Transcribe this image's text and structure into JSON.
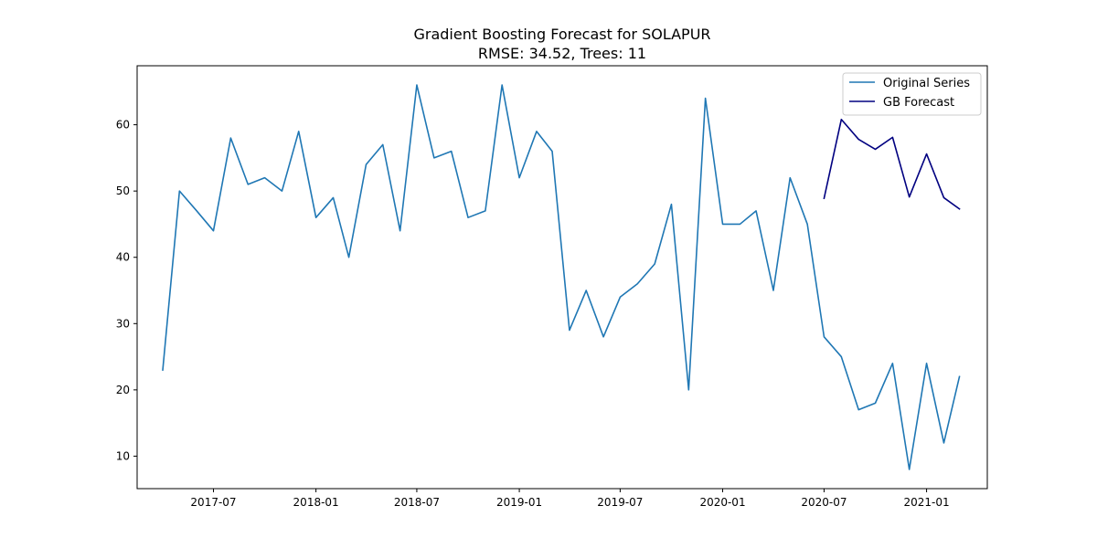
{
  "chart_data": {
    "type": "line",
    "title": "Gradient Boosting Forecast for SOLAPUR",
    "subtitle": "RMSE: 34.52, Trees: 11",
    "xlabel": "",
    "ylabel": "",
    "x_ticks": [
      "2017-07",
      "2018-01",
      "2018-07",
      "2019-01",
      "2019-07",
      "2020-01",
      "2020-07",
      "2021-01"
    ],
    "y_ticks": [
      10,
      20,
      30,
      40,
      50,
      60
    ],
    "xlim": [
      "2017-02-14",
      "2021-04-20"
    ],
    "ylim": [
      5.1,
      68.9
    ],
    "grid": false,
    "legend_position": "top-right",
    "series": [
      {
        "name": "Original Series",
        "color": "#1f77b4",
        "x": [
          "2017-04",
          "2017-05",
          "2017-06",
          "2017-07",
          "2017-08",
          "2017-09",
          "2017-10",
          "2017-11",
          "2017-12",
          "2018-01",
          "2018-02",
          "2018-03",
          "2018-04",
          "2018-05",
          "2018-06",
          "2018-07",
          "2018-08",
          "2018-09",
          "2018-10",
          "2018-11",
          "2018-12",
          "2019-01",
          "2019-02",
          "2019-03",
          "2019-04",
          "2019-05",
          "2019-06",
          "2019-07",
          "2019-08",
          "2019-09",
          "2019-10",
          "2019-11",
          "2019-12",
          "2020-01",
          "2020-02",
          "2020-03",
          "2020-04",
          "2020-05",
          "2020-06",
          "2020-07",
          "2020-08",
          "2020-09",
          "2020-10",
          "2020-11",
          "2020-12",
          "2021-01",
          "2021-02",
          "2021-03"
        ],
        "values": [
          23,
          50,
          47,
          44,
          58,
          51,
          52,
          50,
          59,
          46,
          49,
          40,
          54,
          57,
          44,
          66,
          55,
          56,
          46,
          47,
          66,
          52,
          59,
          56,
          29,
          35,
          28,
          34,
          36,
          39,
          48,
          20,
          64,
          45,
          45,
          47,
          35,
          52,
          45,
          28,
          25,
          17,
          18,
          24,
          8,
          24,
          12,
          22
        ]
      },
      {
        "name": "GB Forecast",
        "color": "#000080",
        "x": [
          "2020-07",
          "2020-08",
          "2020-09",
          "2020-10",
          "2020-11",
          "2020-12",
          "2021-01",
          "2021-02",
          "2021-03"
        ],
        "values": [
          48.9,
          60.8,
          57.8,
          56.3,
          58.1,
          49.1,
          55.6,
          49.0,
          47.3
        ]
      }
    ]
  }
}
